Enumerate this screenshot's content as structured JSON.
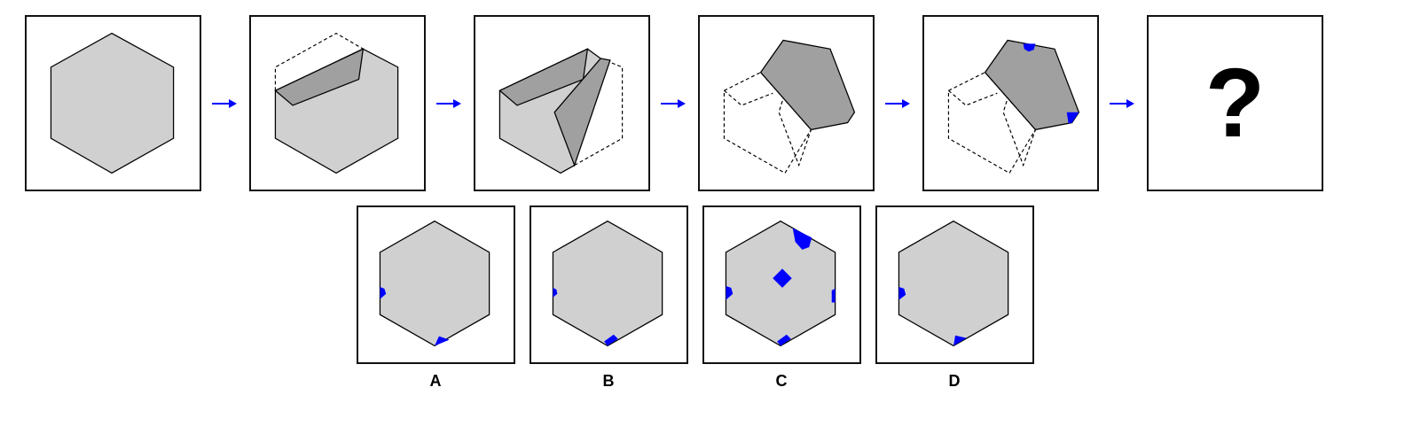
{
  "sequence": {
    "question_mark": "?",
    "colors": {
      "face": "#d0d0d0",
      "fold": "#a0a0a0",
      "hole": "#0000ff",
      "outline": "#000000",
      "arrow": "#0000ff"
    }
  },
  "options": [
    {
      "label": "A"
    },
    {
      "label": "B"
    },
    {
      "label": "C"
    },
    {
      "label": "D"
    }
  ]
}
